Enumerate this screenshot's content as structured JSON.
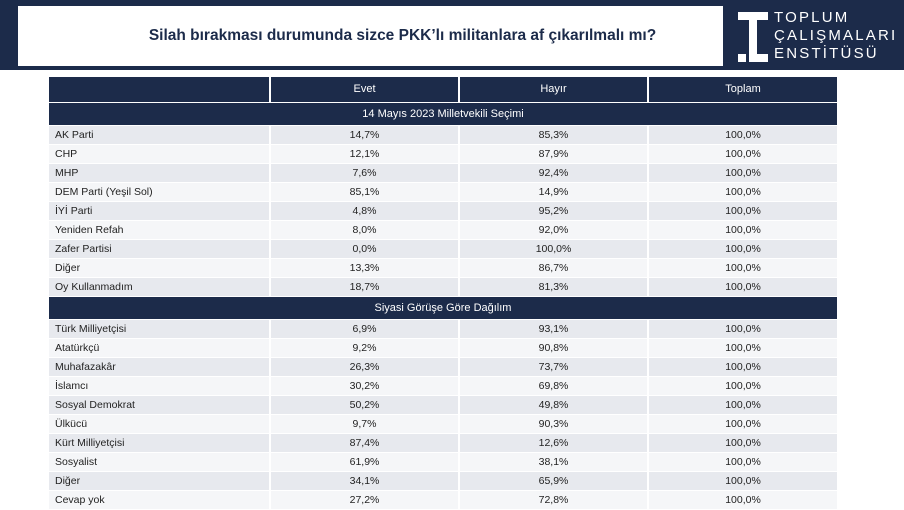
{
  "title": "Silah bırakması durumunda sizce PKK’lı militanlara af çıkarılmalı mı?",
  "logo": {
    "lines": [
      "TOPLUM",
      "ÇALIŞMALARI",
      "ENSTİTÜSÜ"
    ]
  },
  "colors": {
    "navy": "#1c2b4a",
    "row_a": "#e7e9ee",
    "row_b": "#f5f6f8"
  },
  "chart_data": {
    "type": "table",
    "columns": [
      "",
      "Evet",
      "Hayır",
      "Toplam"
    ],
    "sections": [
      {
        "title": "14 Mayıs 2023 Milletvekili Seçimi",
        "rows": [
          [
            "AK Parti",
            "14,7%",
            "85,3%",
            "100,0%"
          ],
          [
            "CHP",
            "12,1%",
            "87,9%",
            "100,0%"
          ],
          [
            "MHP",
            "7,6%",
            "92,4%",
            "100,0%"
          ],
          [
            "DEM Parti (Yeşil Sol)",
            "85,1%",
            "14,9%",
            "100,0%"
          ],
          [
            "İYİ Parti",
            "4,8%",
            "95,2%",
            "100,0%"
          ],
          [
            "Yeniden Refah",
            "8,0%",
            "92,0%",
            "100,0%"
          ],
          [
            "Zafer Partisi",
            "0,0%",
            "100,0%",
            "100,0%"
          ],
          [
            "Diğer",
            "13,3%",
            "86,7%",
            "100,0%"
          ],
          [
            "Oy Kullanmadım",
            "18,7%",
            "81,3%",
            "100,0%"
          ]
        ]
      },
      {
        "title": "Siyasi Görüşe Göre Dağılım",
        "rows": [
          [
            "Türk Milliyetçisi",
            "6,9%",
            "93,1%",
            "100,0%"
          ],
          [
            "Atatürkçü",
            "9,2%",
            "90,8%",
            "100,0%"
          ],
          [
            "Muhafazakâr",
            "26,3%",
            "73,7%",
            "100,0%"
          ],
          [
            "İslamcı",
            "30,2%",
            "69,8%",
            "100,0%"
          ],
          [
            "Sosyal Demokrat",
            "50,2%",
            "49,8%",
            "100,0%"
          ],
          [
            "Ülkücü",
            "9,7%",
            "90,3%",
            "100,0%"
          ],
          [
            "Kürt Milliyetçisi",
            "87,4%",
            "12,6%",
            "100,0%"
          ],
          [
            "Sosyalist",
            "61,9%",
            "38,1%",
            "100,0%"
          ],
          [
            "Diğer",
            "34,1%",
            "65,9%",
            "100,0%"
          ],
          [
            "Cevap yok",
            "27,2%",
            "72,8%",
            "100,0%"
          ]
        ]
      }
    ]
  }
}
